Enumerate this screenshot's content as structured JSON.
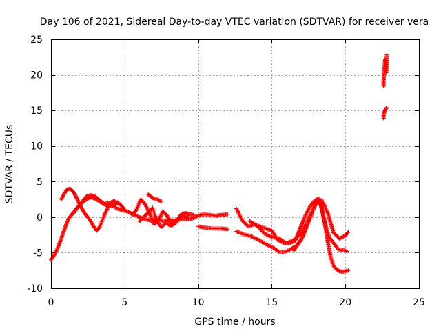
{
  "chart_data": {
    "type": "scatter",
    "title": "Day 106 of 2021, Sidereal Day-to-day VTEC variation (SDTVAR) for receiver vera",
    "xlabel": "GPS time / hours",
    "ylabel": "SDTVAR / TECUs",
    "xlim": [
      0,
      25
    ],
    "ylim": [
      -10,
      25
    ],
    "xticks": [
      0,
      5,
      10,
      15,
      20,
      25
    ],
    "yticks": [
      -10,
      -5,
      0,
      5,
      10,
      15,
      20,
      25
    ],
    "xtick_labels": [
      "0",
      "5",
      "10",
      "15",
      "20",
      "25"
    ],
    "ytick_labels": [
      "-10",
      "-5",
      "0",
      "5",
      "10",
      "15",
      "20",
      "25"
    ],
    "grid": true,
    "marker": "+",
    "series": [
      {
        "name": "SDTVAR",
        "color": "#ff0000",
        "segments": [
          {
            "x": [
              0.0,
              0.2,
              0.4,
              0.6,
              0.8,
              1.0,
              1.2,
              1.5,
              1.8,
              2.1,
              2.4,
              2.7,
              3.0,
              3.3,
              3.6,
              3.9,
              4.2,
              4.5,
              4.8,
              5.2,
              5.6,
              6.0,
              6.4,
              6.8,
              7.2,
              7.6,
              8.0,
              8.4,
              8.8,
              9.2,
              9.6,
              10.0,
              10.4,
              10.8,
              11.2,
              11.6,
              12.0
            ],
            "y": [
              -6.0,
              -5.4,
              -4.6,
              -3.6,
              -2.4,
              -1.2,
              -0.2,
              0.6,
              1.4,
              2.0,
              2.5,
              2.8,
              2.6,
              2.2,
              1.8,
              2.0,
              1.6,
              1.2,
              1.0,
              0.8,
              0.4,
              0.0,
              -0.3,
              -0.5,
              -0.2,
              -0.6,
              -0.4,
              -0.5,
              -0.3,
              -0.3,
              -0.2,
              0.2,
              0.4,
              0.3,
              0.2,
              0.3,
              0.4
            ]
          },
          {
            "x": [
              0.7,
              0.9,
              1.1,
              1.3,
              1.5,
              1.7,
              1.9,
              2.1,
              2.3,
              2.5,
              2.7,
              2.9,
              3.1,
              3.3,
              3.5,
              3.7,
              3.9,
              4.1,
              4.3,
              4.5
            ],
            "y": [
              2.5,
              3.3,
              3.9,
              4.0,
              3.6,
              2.9,
              2.0,
              1.2,
              0.5,
              0.0,
              -0.6,
              -1.3,
              -1.9,
              -1.4,
              -0.4,
              0.6,
              1.5,
              2.1,
              2.3,
              1.9
            ]
          },
          {
            "x": [
              1.5,
              1.8,
              2.1,
              2.4,
              2.7,
              3.0,
              3.3,
              3.6,
              3.9,
              4.2,
              4.5,
              4.8,
              5.0
            ],
            "y": [
              0.5,
              1.3,
              2.1,
              2.9,
              3.1,
              2.9,
              2.4,
              1.9,
              1.5,
              1.7,
              2.1,
              1.6,
              1.0
            ]
          },
          {
            "x": [
              5.5,
              5.8,
              6.1,
              6.4,
              6.7,
              7.0,
              7.3,
              7.6,
              7.9,
              8.2,
              8.5,
              8.8,
              9.1,
              9.4,
              9.7
            ],
            "y": [
              0.3,
              1.0,
              2.5,
              1.8,
              0.5,
              -1.0,
              -0.5,
              0.8,
              0.2,
              -1.2,
              -0.8,
              0.3,
              0.6,
              0.4,
              0.3
            ]
          },
          {
            "x": [
              6.0,
              6.3,
              6.6,
              6.9,
              7.2,
              7.5,
              7.8,
              8.1,
              8.4,
              8.7,
              9.0,
              9.3
            ],
            "y": [
              -0.6,
              0.0,
              0.6,
              1.3,
              -0.6,
              -1.4,
              -0.8,
              -1.2,
              -0.5,
              -0.2,
              0.2,
              0.0
            ]
          },
          {
            "x": [
              6.6,
              6.9,
              7.2,
              7.5
            ],
            "y": [
              3.2,
              2.7,
              2.5,
              2.2
            ]
          },
          {
            "x": [
              10.0,
              10.5,
              11.0,
              11.5,
              12.0
            ],
            "y": [
              -1.3,
              -1.5,
              -1.6,
              -1.6,
              -1.7
            ]
          },
          {
            "x": [
              12.6,
              13.0,
              13.4,
              13.8,
              14.2,
              14.6,
              15.0,
              15.4,
              15.8,
              16.2,
              16.6,
              17.0,
              17.3,
              17.6,
              17.9,
              18.1,
              18.3,
              18.5,
              18.7,
              18.9,
              19.1,
              19.3,
              19.5,
              19.7,
              19.9,
              20.1
            ],
            "y": [
              1.2,
              -0.5,
              -1.3,
              -1.0,
              -1.3,
              -1.6,
              -1.9,
              -3.2,
              -3.6,
              -3.7,
              -3.3,
              -1.2,
              0.3,
              1.5,
              2.3,
              2.5,
              2.0,
              0.2,
              -1.5,
              -2.8,
              -3.4,
              -3.9,
              -4.5,
              -4.7,
              -4.6,
              -4.8
            ]
          },
          {
            "x": [
              12.6,
              13.1,
              13.6,
              14.1,
              14.6,
              15.1,
              15.5,
              15.9,
              16.3,
              16.7,
              17.1,
              17.4,
              17.7,
              18.0,
              18.2,
              18.4,
              18.6,
              18.8,
              19.0,
              19.2,
              19.4,
              19.6,
              19.8,
              20.0,
              20.2
            ],
            "y": [
              -2.0,
              -2.4,
              -2.7,
              -3.2,
              -3.8,
              -4.3,
              -4.9,
              -4.9,
              -4.5,
              -4.0,
              -2.8,
              -1.2,
              0.3,
              2.4,
              2.6,
              1.2,
              -0.9,
              -3.4,
              -5.6,
              -6.9,
              -7.3,
              -7.6,
              -7.7,
              -7.6,
              -7.5
            ]
          },
          {
            "x": [
              13.5,
              14.0,
              14.5,
              15.0,
              15.5,
              16.0,
              16.5,
              17.0,
              17.3
            ],
            "y": [
              -0.6,
              -1.2,
              -2.3,
              -2.8,
              -3.0,
              -3.7,
              -3.2,
              -2.3,
              -1.0
            ]
          },
          {
            "x": [
              16.5,
              17.0,
              17.5,
              18.0,
              18.4,
              18.8,
              19.2,
              19.6,
              20.0,
              20.2
            ],
            "y": [
              -4.7,
              -3.2,
              -0.2,
              1.8,
              2.4,
              0.6,
              -2.2,
              -3.0,
              -2.6,
              -2.1
            ]
          },
          {
            "x": [
              22.6,
              22.6,
              22.62,
              22.65,
              22.68,
              22.7,
              22.72,
              22.75,
              22.78,
              22.8,
              22.82
            ],
            "y": [
              18.4,
              19.2,
              20.0,
              20.8,
              21.5,
              22.2,
              21.8,
              20.6,
              20.3,
              21.3,
              22.8
            ]
          },
          {
            "x": [
              22.6,
              22.6,
              22.65,
              22.7,
              22.75,
              22.8
            ],
            "y": [
              13.9,
              14.3,
              14.8,
              15.0,
              15.2,
              15.4
            ]
          }
        ]
      }
    ]
  }
}
